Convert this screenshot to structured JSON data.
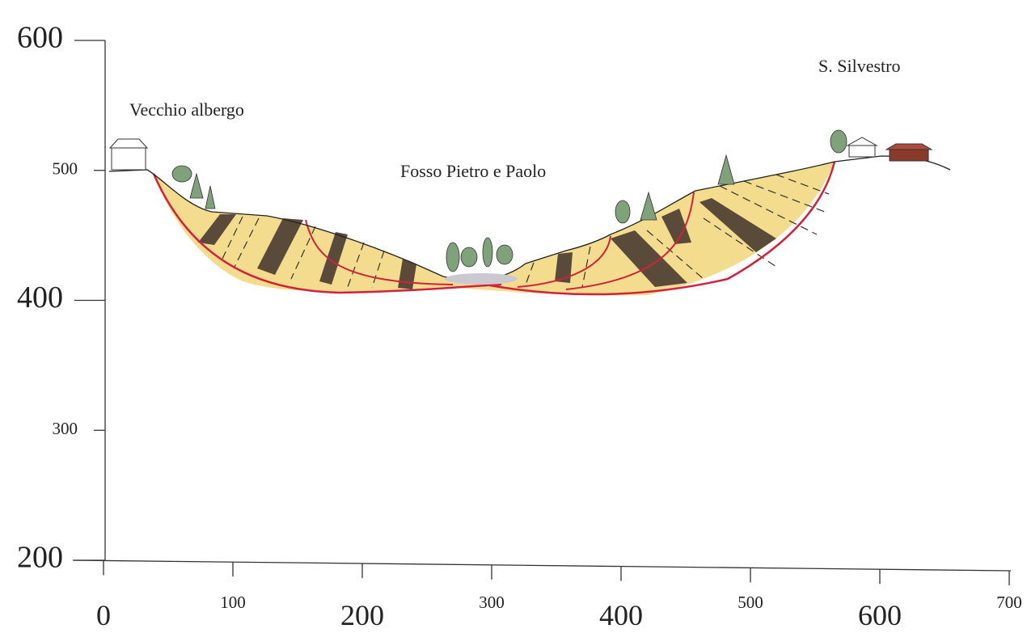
{
  "axes": {
    "xticks": [
      0,
      100,
      200,
      300,
      400,
      500,
      600,
      700
    ],
    "yticks": [
      600,
      500,
      400,
      300,
      200
    ]
  },
  "labels": {
    "left": "Vecchio albergo",
    "center": "Fosso Pietro e Paolo",
    "right": "S. Silvestro"
  }
}
